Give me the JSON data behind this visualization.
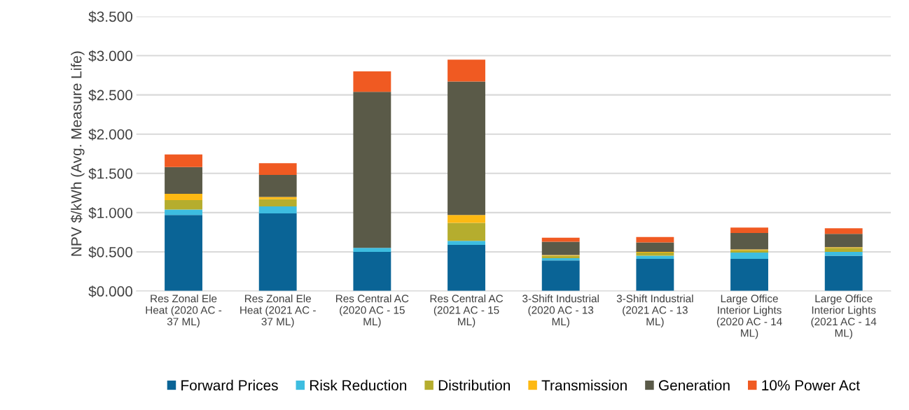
{
  "chart_data": {
    "type": "bar",
    "stacked": true,
    "ylabel": "NPV $/kWh (Avg. Measure Life)",
    "categories": [
      "Res Zonal Ele\nHeat (2020 AC -\n37 ML)",
      "Res Zonal Ele\nHeat (2021 AC -\n37 ML)",
      "Res Central AC\n(2020 AC - 15\nML)",
      "Res Central AC\n(2021 AC - 15\nML)",
      "3-Shift Industrial\n(2020 AC - 13\nML)",
      "3-Shift Industrial\n(2021 AC - 13\nML)",
      "Large Office\nInterior Lights\n(2020 AC - 14\nML)",
      "Large Office\nInterior Lights\n(2021 AC - 14\nML)"
    ],
    "series": [
      {
        "name": "Forward Prices",
        "color": "#0a6496",
        "values": [
          0.97,
          0.99,
          0.5,
          0.59,
          0.39,
          0.41,
          0.41,
          0.45
        ]
      },
      {
        "name": "Risk Reduction",
        "color": "#3dbde0",
        "values": [
          0.07,
          0.09,
          0.05,
          0.05,
          0.03,
          0.04,
          0.08,
          0.05
        ]
      },
      {
        "name": "Distribution",
        "color": "#b5ad2e",
        "values": [
          0.12,
          0.09,
          0,
          0.23,
          0.03,
          0.04,
          0.03,
          0.05
        ]
      },
      {
        "name": "Transmission",
        "color": "#fdb913",
        "values": [
          0.08,
          0.03,
          0,
          0.1,
          0.01,
          0.01,
          0.01,
          0.01
        ]
      },
      {
        "name": "Generation",
        "color": "#5a5a48",
        "values": [
          0.34,
          0.28,
          1.99,
          1.7,
          0.17,
          0.12,
          0.21,
          0.17
        ]
      },
      {
        "name": "10% Power Act",
        "color": "#f05a22",
        "values": [
          0.16,
          0.15,
          0.26,
          0.28,
          0.05,
          0.07,
          0.07,
          0.07
        ]
      }
    ],
    "ylim": [
      0,
      3.5
    ],
    "yticks": [
      {
        "value": 0,
        "label": "$0.000"
      },
      {
        "value": 0.5,
        "label": "$0.500"
      },
      {
        "value": 1,
        "label": "$1.000"
      },
      {
        "value": 1.5,
        "label": "$1.500"
      },
      {
        "value": 2,
        "label": "$2.000"
      },
      {
        "value": 2.5,
        "label": "$2.500"
      },
      {
        "value": 3,
        "label": "$3.000"
      },
      {
        "value": 3.5,
        "label": "$3.500"
      }
    ],
    "grid": "y",
    "legend": "bottom"
  }
}
